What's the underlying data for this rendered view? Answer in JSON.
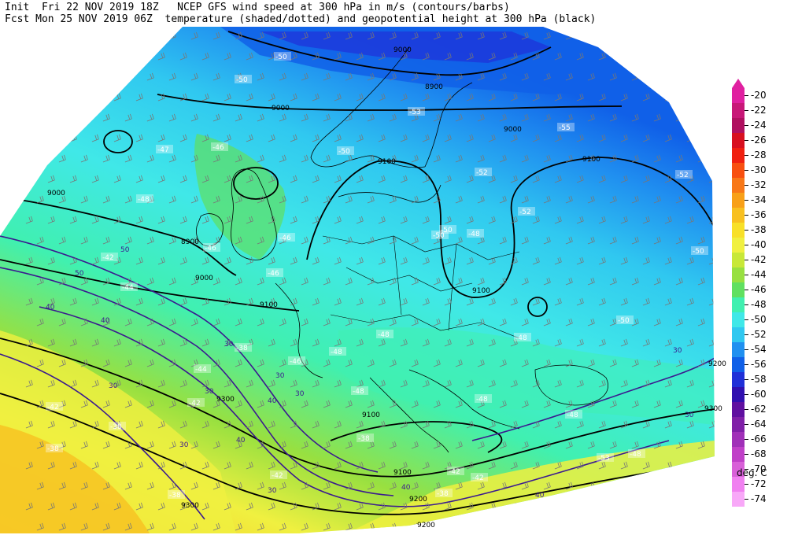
{
  "header": {
    "line1": "Init  Fri 22 NOV 2019 18Z   NCEP GFS wind speed at 300 hPa in m/s (contours/barbs)",
    "line2": "Fcst Mon 25 NOV 2019 06Z  temperature (shaded/dotted) and geopotential height at 300 hPa (black)"
  },
  "legend": {
    "units": "deg. C",
    "entries": [
      {
        "label": "-20",
        "color": "#e020a0"
      },
      {
        "label": "-22",
        "color": "#c81878"
      },
      {
        "label": "-24",
        "color": "#b01060"
      },
      {
        "label": "-26",
        "color": "#d81020"
      },
      {
        "label": "-28",
        "color": "#f02010"
      },
      {
        "label": "-30",
        "color": "#f85010"
      },
      {
        "label": "-32",
        "color": "#f87818"
      },
      {
        "label": "-34",
        "color": "#f8a018"
      },
      {
        "label": "-36",
        "color": "#f8c020"
      },
      {
        "label": "-38",
        "color": "#f8e028"
      },
      {
        "label": "-40",
        "color": "#f0f040"
      },
      {
        "label": "-42",
        "color": "#c8e838"
      },
      {
        "label": "-44",
        "color": "#98e040"
      },
      {
        "label": "-46",
        "color": "#60e060"
      },
      {
        "label": "-48",
        "color": "#40f0b0"
      },
      {
        "label": "-50",
        "color": "#40e8e8"
      },
      {
        "label": "-52",
        "color": "#30c8f0"
      },
      {
        "label": "-54",
        "color": "#2090f0"
      },
      {
        "label": "-56",
        "color": "#1060e8"
      },
      {
        "label": "-58",
        "color": "#2030d8"
      },
      {
        "label": "-60",
        "color": "#3010b0"
      },
      {
        "label": "-62",
        "color": "#6010a0"
      },
      {
        "label": "-64",
        "color": "#8020a8"
      },
      {
        "label": "-66",
        "color": "#a030b8"
      },
      {
        "label": "-68",
        "color": "#c040c8"
      },
      {
        "label": "-70",
        "color": "#d860d8"
      },
      {
        "label": "-72",
        "color": "#f080f0"
      },
      {
        "label": "-74",
        "color": "#f8a8f8"
      }
    ]
  },
  "map": {
    "height_labels": [
      "9000",
      "9000",
      "8900",
      "9000",
      "9100",
      "9100",
      "9000",
      "8900",
      "9000",
      "9100",
      "9100",
      "9100",
      "9200",
      "9300",
      "9200",
      "9300",
      "9200",
      "9300",
      "9100"
    ],
    "temp_labels": [
      "-50",
      "-50",
      "-47",
      "-46",
      "-48",
      "-50",
      "-52",
      "-55",
      "-52",
      "-53",
      "-50",
      "-46",
      "-46",
      "-42",
      "-44",
      "-44",
      "-46",
      "-48",
      "-48",
      "-48",
      "-48",
      "-48",
      "-50",
      "-50",
      "-42",
      "-38",
      "-38",
      "-38",
      "-38",
      "-42",
      "-42",
      "-48",
      "-38",
      "-42",
      "-42",
      "-38",
      "-48",
      "-46",
      "-48",
      "-50",
      "-52",
      "-52",
      "-53"
    ],
    "wind_labels": [
      "50",
      "50",
      "40",
      "40",
      "30",
      "30",
      "30",
      "40",
      "30",
      "30",
      "30",
      "40",
      "40",
      "30",
      "40",
      "30",
      "30"
    ]
  }
}
